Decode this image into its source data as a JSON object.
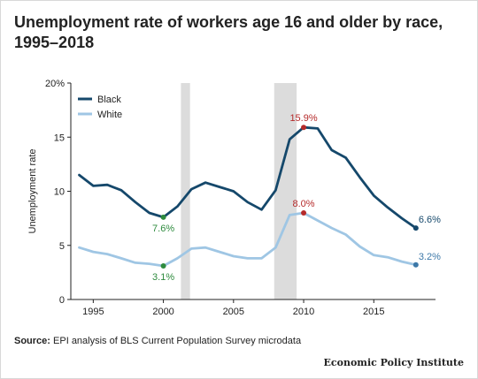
{
  "title": "Unemployment rate of workers age 16 and older by race, 1995–2018",
  "source_label": "Source:",
  "source_text": "EPI analysis of BLS Current Population Survey microdata",
  "credit": "Economic Policy Institute",
  "chart_data": {
    "type": "line",
    "title": "Unemployment rate of workers age 16 and older by race, 1995–2018",
    "xlabel": "",
    "ylabel": "Unemployment rate",
    "xlim": [
      1993.4,
      2019.4
    ],
    "ylim": [
      0,
      20
    ],
    "x_ticks": [
      1995,
      2000,
      2005,
      2010,
      2015
    ],
    "y_ticks": [
      0,
      5,
      10,
      15,
      20
    ],
    "y_tick_labels": [
      "0",
      "5",
      "10",
      "15",
      "20%"
    ],
    "grid": false,
    "legend": "top-left",
    "recession_shading": [
      [
        2001.25,
        2001.9
      ],
      [
        2007.9,
        2009.5
      ]
    ],
    "series": [
      {
        "name": "Black",
        "color": "#15486b",
        "x": [
          1994,
          1995,
          1996,
          1997,
          1998,
          1999,
          2000,
          2001,
          2002,
          2003,
          2004,
          2005,
          2006,
          2007,
          2008,
          2009,
          2010,
          2011,
          2012,
          2013,
          2014,
          2015,
          2016,
          2017,
          2018
        ],
        "y": [
          11.5,
          10.5,
          10.6,
          10.1,
          9.0,
          8.0,
          7.6,
          8.6,
          10.2,
          10.8,
          10.4,
          10.0,
          9.0,
          8.3,
          10.1,
          14.8,
          15.9,
          15.8,
          13.8,
          13.1,
          11.3,
          9.6,
          8.5,
          7.5,
          6.6
        ],
        "annotations": [
          {
            "x": 2000,
            "y": 7.6,
            "label": "7.6%",
            "color": "#2e8b3e"
          },
          {
            "x": 2010,
            "y": 15.9,
            "label": "15.9%",
            "color": "#b52a2a"
          },
          {
            "x": 2018,
            "y": 6.6,
            "label": "6.6%",
            "color": "#15486b"
          }
        ]
      },
      {
        "name": "White",
        "color": "#9fc6e4",
        "x": [
          1994,
          1995,
          1996,
          1997,
          1998,
          1999,
          2000,
          2001,
          2002,
          2003,
          2004,
          2005,
          2006,
          2007,
          2008,
          2009,
          2010,
          2011,
          2012,
          2013,
          2014,
          2015,
          2016,
          2017,
          2018
        ],
        "y": [
          4.8,
          4.4,
          4.2,
          3.8,
          3.4,
          3.3,
          3.1,
          3.8,
          4.7,
          4.8,
          4.4,
          4.0,
          3.8,
          3.8,
          4.8,
          7.8,
          8.0,
          7.3,
          6.6,
          6.0,
          4.9,
          4.1,
          3.9,
          3.5,
          3.2
        ],
        "annotations": [
          {
            "x": 2000,
            "y": 3.1,
            "label": "3.1%",
            "color": "#2e8b3e"
          },
          {
            "x": 2010,
            "y": 8.0,
            "label": "8.0%",
            "color": "#b52a2a"
          },
          {
            "x": 2018,
            "y": 3.2,
            "label": "3.2%",
            "color": "#3d78a8"
          }
        ]
      }
    ]
  }
}
